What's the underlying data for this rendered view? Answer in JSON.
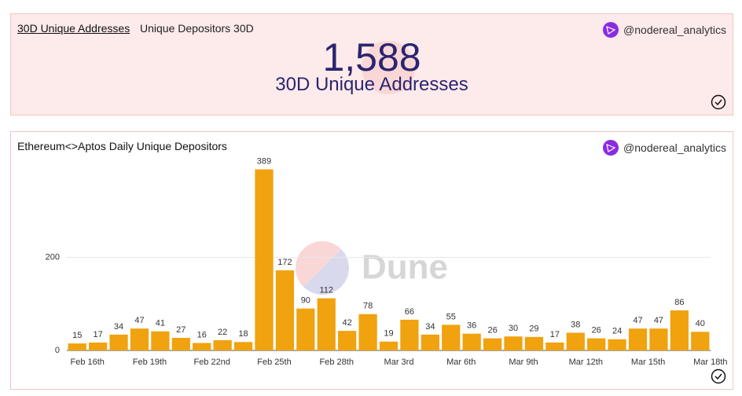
{
  "counter": {
    "tabs": [
      "30D Unique Addresses",
      "Unique Depositors 30D"
    ],
    "value": "1,588",
    "label": "30D Unique Addresses",
    "author": "@nodereal_analytics"
  },
  "chart_data": {
    "type": "bar",
    "title": "Ethereum<>Aptos Daily Unique Depositors",
    "author": "@nodereal_analytics",
    "watermark": "Dune",
    "categories": [
      "Feb 16th",
      null,
      null,
      "Feb 19th",
      null,
      null,
      "Feb 22nd",
      null,
      null,
      "Feb 25th",
      null,
      null,
      "Feb 28th",
      null,
      null,
      "Mar 3rd",
      null,
      null,
      "Mar 6th",
      null,
      null,
      "Mar 9th",
      null,
      null,
      "Mar 12th",
      null,
      null,
      "Mar 15th",
      null,
      null,
      "Mar 18th"
    ],
    "values": [
      15,
      17,
      34,
      47,
      41,
      27,
      16,
      22,
      18,
      389,
      172,
      90,
      112,
      42,
      78,
      19,
      66,
      34,
      55,
      36,
      26,
      30,
      29,
      17,
      38,
      26,
      24,
      47,
      47,
      86,
      40
    ],
    "color": "#f0a20f",
    "ylim": [
      0,
      400
    ],
    "yticks": [
      0,
      200
    ],
    "grid": true
  }
}
